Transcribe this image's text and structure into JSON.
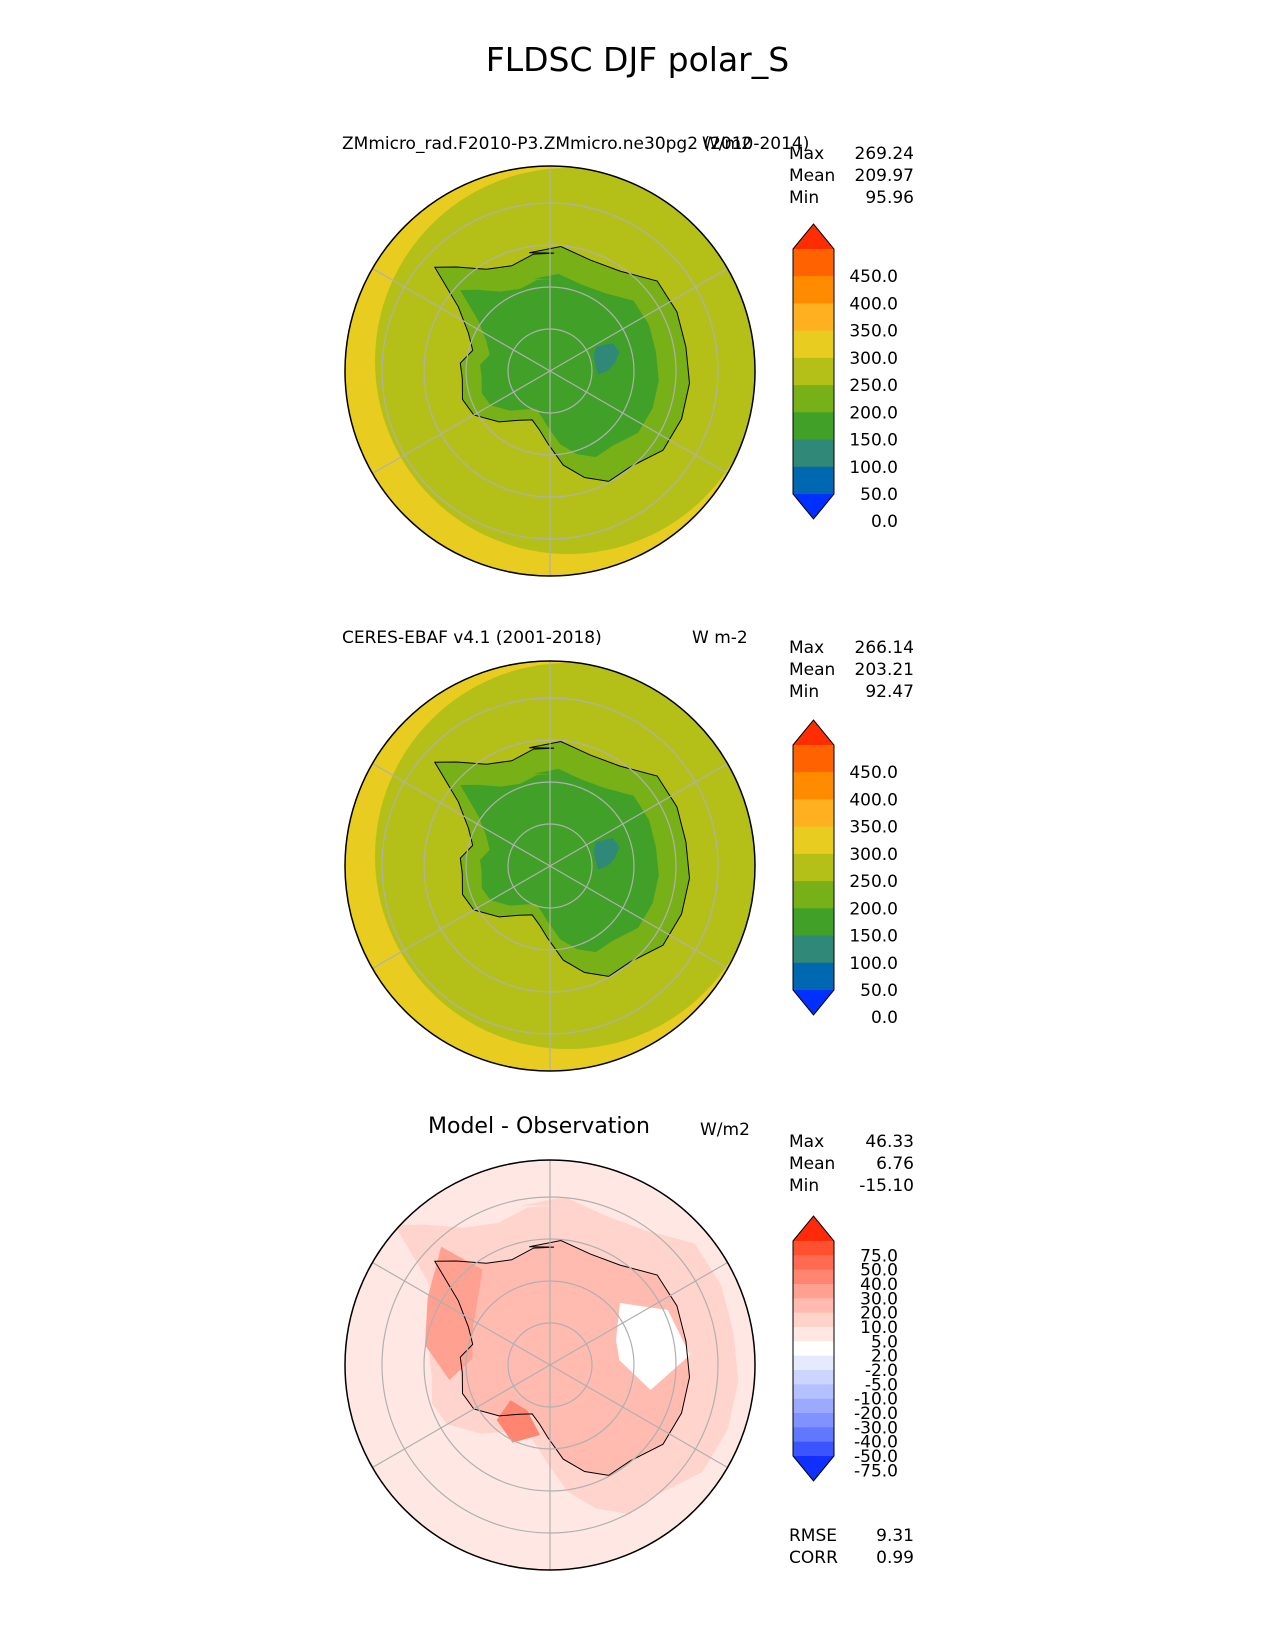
{
  "title": "FLDSC DJF polar_S",
  "panels": [
    {
      "left_title": "ZMmicro_rad.F2010-P3.ZMmicro.ne30pg2 (2010-2014)",
      "units": "W/m2",
      "stats": [
        {
          "label": "Max",
          "value": "269.24"
        },
        {
          "label": "Mean",
          "value": "209.97"
        },
        {
          "label": "Min",
          "value": "95.96"
        }
      ]
    },
    {
      "left_title": "CERES-EBAF v4.1 (2001-2018)",
      "units": "W m-2",
      "stats": [
        {
          "label": "Max",
          "value": "266.14"
        },
        {
          "label": "Mean",
          "value": "203.21"
        },
        {
          "label": "Min",
          "value": "92.47"
        }
      ]
    },
    {
      "center_title": "Model - Observation",
      "units": "W/m2",
      "stats": [
        {
          "label": "Max",
          "value": "46.33"
        },
        {
          "label": "Mean",
          "value": "6.76"
        },
        {
          "label": "Min",
          "value": "-15.10"
        }
      ],
      "metrics": [
        {
          "label": "RMSE",
          "value": "9.31"
        },
        {
          "label": "CORR",
          "value": "0.99"
        }
      ]
    }
  ],
  "colorbars": {
    "field": {
      "labels": [
        "450.0",
        "400.0",
        "350.0",
        "300.0",
        "250.0",
        "200.0",
        "150.0",
        "100.0",
        "50.0",
        "0.0"
      ],
      "colors": [
        "#ff2d00",
        "#ff6200",
        "#ff8c00",
        "#ffb020",
        "#e8cc20",
        "#b4c018",
        "#78b018",
        "#40a028",
        "#308878",
        "#0068b0",
        "#0030ff"
      ]
    },
    "diff": {
      "labels": [
        "75.0",
        "50.0",
        "40.0",
        "30.0",
        "20.0",
        "10.0",
        "5.0",
        "2.0",
        "-2.0",
        "-5.0",
        "-10.0",
        "-20.0",
        "-30.0",
        "-40.0",
        "-50.0",
        "-75.0"
      ],
      "colors": [
        "#ff2a0a",
        "#ff5030",
        "#ff6a50",
        "#ff8570",
        "#ffa090",
        "#ffbbb0",
        "#ffd2ca",
        "#ffe8e4",
        "#ffffff",
        "#e6eaff",
        "#cdd5ff",
        "#b4c0ff",
        "#9baaff",
        "#7f92ff",
        "#6078ff",
        "#3a55ff",
        "#1030ff"
      ]
    }
  },
  "chart_data": [
    {
      "type": "heatmap",
      "projection": "south-polar-stereographic",
      "variable": "FLDSC",
      "season": "DJF",
      "units": "W/m2",
      "stats": {
        "max": 269.24,
        "mean": 209.97,
        "min": 95.96
      },
      "levels": [
        0,
        50,
        100,
        150,
        200,
        250,
        300,
        350,
        400,
        450
      ]
    },
    {
      "type": "heatmap",
      "projection": "south-polar-stereographic",
      "variable": "FLDSC",
      "season": "DJF",
      "units": "W m-2",
      "stats": {
        "max": 266.14,
        "mean": 203.21,
        "min": 92.47
      },
      "levels": [
        0,
        50,
        100,
        150,
        200,
        250,
        300,
        350,
        400,
        450
      ]
    },
    {
      "type": "heatmap",
      "projection": "south-polar-stereographic",
      "variable": "FLDSC",
      "season": "DJF",
      "units": "W/m2",
      "stats": {
        "max": 46.33,
        "mean": 6.76,
        "min": -15.1
      },
      "rmse": 9.31,
      "corr": 0.99,
      "levels": [
        -75,
        -50,
        -40,
        -30,
        -20,
        -10,
        -5,
        -2,
        2,
        5,
        10,
        20,
        30,
        40,
        50,
        75
      ]
    }
  ]
}
